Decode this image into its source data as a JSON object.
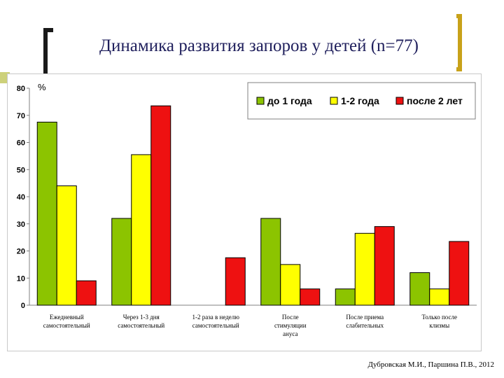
{
  "slide": {
    "title": "Динамика развития запоров у детей (n=77)",
    "source": "Дубровская М.И., Паршина П.В., 2012"
  },
  "colors": {
    "series": [
      "#8cc400",
      "#ffff00",
      "#ee1111"
    ],
    "outline": "#000000",
    "title": "#1f1f5c"
  },
  "chart_data": {
    "type": "bar",
    "title": "",
    "xlabel": "",
    "ylabel": "%",
    "ylim": [
      0,
      80
    ],
    "yticks": [
      0,
      10,
      20,
      30,
      40,
      50,
      60,
      70,
      80
    ],
    "grid": false,
    "legend_position": "top-right",
    "categories": [
      [
        "Ежедневный",
        "самостоятельный"
      ],
      [
        "Через 1-3 дня",
        "самостоятельный"
      ],
      [
        "1-2 раза в неделю",
        "самостоятельный"
      ],
      [
        "После",
        "стимуляции",
        "ануса"
      ],
      [
        "После приема",
        "слабительных"
      ],
      [
        "Только после",
        "клизмы"
      ]
    ],
    "series": [
      {
        "name": "до 1 года",
        "values": [
          67.5,
          32,
          0,
          32,
          6,
          12
        ]
      },
      {
        "name": "1-2 года",
        "values": [
          44,
          55.5,
          0,
          15,
          26.5,
          6
        ]
      },
      {
        "name": "после 2 лет",
        "values": [
          9,
          73.5,
          17.5,
          6,
          29,
          23.5
        ]
      }
    ]
  }
}
